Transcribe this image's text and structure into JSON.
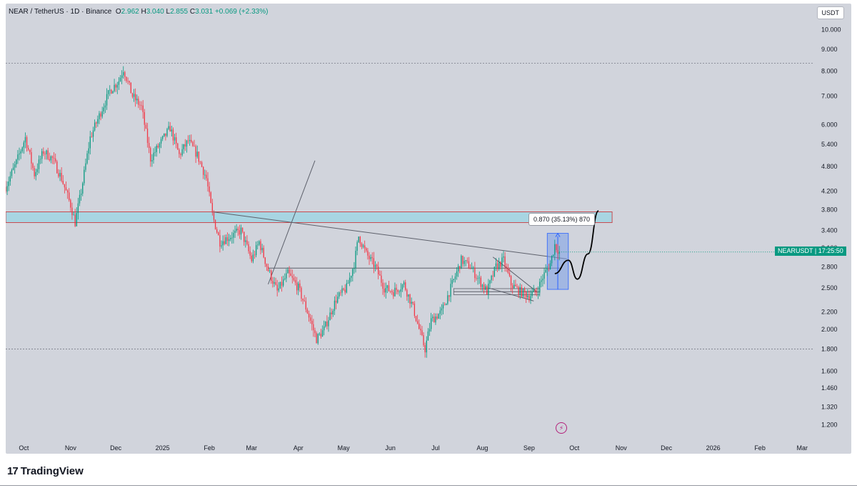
{
  "header": {
    "symbol": "NEAR / TetherUS · 1D · Binance",
    "open_label": "O",
    "open": "2.962",
    "high_label": "H",
    "high": "3.040",
    "low_label": "L",
    "low": "2.855",
    "close_label": "C",
    "close": "3.031",
    "change": "+0.069 (+2.33%)"
  },
  "currency_badge": "USDT",
  "current_price_tag": {
    "symbol": "NEARUSDT",
    "countdown": "17:25:50"
  },
  "measure_label": "0.870 (35.13%) 870",
  "footer": {
    "brand": "TradingView"
  },
  "colors": {
    "up": "#089981",
    "down": "#f23645",
    "background": "#d1d4dc",
    "zone": "#a8d5e2",
    "measure": "#7b9ee8"
  },
  "chart_data": {
    "type": "candlestick",
    "symbol": "NEARUSDT",
    "y_scale": "log",
    "ylim": [
      1.1,
      11.5
    ],
    "y_ticks": [
      "10.000",
      "9.000",
      "8.000",
      "7.000",
      "6.000",
      "5.400",
      "4.800",
      "4.200",
      "3.800",
      "3.400",
      "3.100",
      "2.800",
      "2.500",
      "2.200",
      "2.000",
      "1.800",
      "1.600",
      "1.460",
      "1.320",
      "1.200"
    ],
    "x_ticks": [
      "Oct",
      "Nov",
      "Dec",
      "2025",
      "Feb",
      "Mar",
      "Apr",
      "May",
      "Jun",
      "Jul",
      "Aug",
      "Sep",
      "Oct",
      "Nov",
      "Dec",
      "2026",
      "Feb",
      "Mar"
    ],
    "x_tick_dates": [
      "2024-10-01",
      "2024-11-01",
      "2024-12-01",
      "2025-01-01",
      "2025-02-01",
      "2025-03-01",
      "2025-04-01",
      "2025-05-01",
      "2025-06-01",
      "2025-07-01",
      "2025-08-01",
      "2025-09-01",
      "2025-10-01",
      "2025-11-01",
      "2025-12-01",
      "2026-01-01",
      "2026-02-01",
      "2026-03-01"
    ],
    "xlim_dates": [
      "2024-09-19",
      "2026-03-08"
    ],
    "path": [
      [
        "2024-09-19",
        4.3
      ],
      [
        "2024-09-26",
        4.9
      ],
      [
        "2024-10-02",
        5.6
      ],
      [
        "2024-10-08",
        4.6
      ],
      [
        "2024-10-14",
        5.2
      ],
      [
        "2024-10-20",
        5.0
      ],
      [
        "2024-10-26",
        4.5
      ],
      [
        "2024-11-01",
        3.9
      ],
      [
        "2024-11-04",
        3.55
      ],
      [
        "2024-11-08",
        4.2
      ],
      [
        "2024-11-14",
        5.6
      ],
      [
        "2024-11-20",
        6.3
      ],
      [
        "2024-11-27",
        7.2
      ],
      [
        "2024-12-03",
        7.6
      ],
      [
        "2024-12-06",
        8.1
      ],
      [
        "2024-12-12",
        7.0
      ],
      [
        "2024-12-18",
        6.6
      ],
      [
        "2024-12-24",
        5.0
      ],
      [
        "2024-12-30",
        5.4
      ],
      [
        "2025-01-06",
        5.9
      ],
      [
        "2025-01-12",
        5.1
      ],
      [
        "2025-01-18",
        5.5
      ],
      [
        "2025-01-24",
        5.1
      ],
      [
        "2025-01-30",
        4.5
      ],
      [
        "2025-02-03",
        3.7
      ],
      [
        "2025-02-08",
        3.2
      ],
      [
        "2025-02-15",
        3.3
      ],
      [
        "2025-02-22",
        3.4
      ],
      [
        "2025-03-01",
        2.9
      ],
      [
        "2025-03-06",
        3.2
      ],
      [
        "2025-03-12",
        2.75
      ],
      [
        "2025-03-18",
        2.45
      ],
      [
        "2025-03-25",
        2.7
      ],
      [
        "2025-04-01",
        2.5
      ],
      [
        "2025-04-07",
        2.2
      ],
      [
        "2025-04-13",
        1.9
      ],
      [
        "2025-04-18",
        2.0
      ],
      [
        "2025-04-26",
        2.35
      ],
      [
        "2025-05-03",
        2.5
      ],
      [
        "2025-05-08",
        2.85
      ],
      [
        "2025-05-11",
        3.3
      ],
      [
        "2025-05-16",
        3.0
      ],
      [
        "2025-05-22",
        2.8
      ],
      [
        "2025-05-28",
        2.5
      ],
      [
        "2025-06-03",
        2.45
      ],
      [
        "2025-06-10",
        2.55
      ],
      [
        "2025-06-16",
        2.25
      ],
      [
        "2025-06-21",
        1.95
      ],
      [
        "2025-06-24",
        1.8
      ],
      [
        "2025-06-28",
        2.1
      ],
      [
        "2025-07-05",
        2.2
      ],
      [
        "2025-07-12",
        2.55
      ],
      [
        "2025-07-18",
        2.9
      ],
      [
        "2025-07-24",
        2.8
      ],
      [
        "2025-07-30",
        2.6
      ],
      [
        "2025-08-04",
        2.45
      ],
      [
        "2025-08-10",
        2.8
      ],
      [
        "2025-08-15",
        2.9
      ],
      [
        "2025-08-20",
        2.55
      ],
      [
        "2025-08-26",
        2.45
      ],
      [
        "2025-09-01",
        2.4
      ],
      [
        "2025-09-06",
        2.45
      ],
      [
        "2025-09-10",
        2.65
      ],
      [
        "2025-09-15",
        2.85
      ],
      [
        "2025-09-18",
        3.15
      ],
      [
        "2025-09-21",
        3.03
      ]
    ],
    "resistance_zone": {
      "from": "2024-09-19",
      "to": "2025-10-26",
      "low": 3.55,
      "high": 3.76
    },
    "trendlines": [
      {
        "from": [
          "2025-02-03",
          3.76
        ],
        "to": [
          "2025-09-26",
          2.92
        ]
      },
      {
        "from": [
          "2025-03-12",
          2.55
        ],
        "to": [
          "2025-04-12",
          4.95
        ]
      }
    ],
    "support_lines": [
      {
        "from": [
          "2025-03-12",
          2.78
        ],
        "to": [
          "2025-09-22",
          2.78
        ]
      },
      {
        "from": [
          "2025-07-13",
          2.45
        ],
        "to": [
          "2025-09-08",
          2.45
        ]
      }
    ],
    "measure_box": {
      "from": "2025-09-13",
      "to": "2025-09-27",
      "low": 2.48,
      "high": 3.35
    },
    "projection": [
      [
        "2025-09-18",
        2.7
      ],
      [
        "2025-09-27",
        2.9
      ],
      [
        "2025-10-03",
        2.62
      ],
      [
        "2025-10-10",
        3.0
      ],
      [
        "2025-10-17",
        3.78
      ]
    ],
    "dotted_levels": [
      8.35,
      1.8
    ],
    "current_price": 3.031
  }
}
